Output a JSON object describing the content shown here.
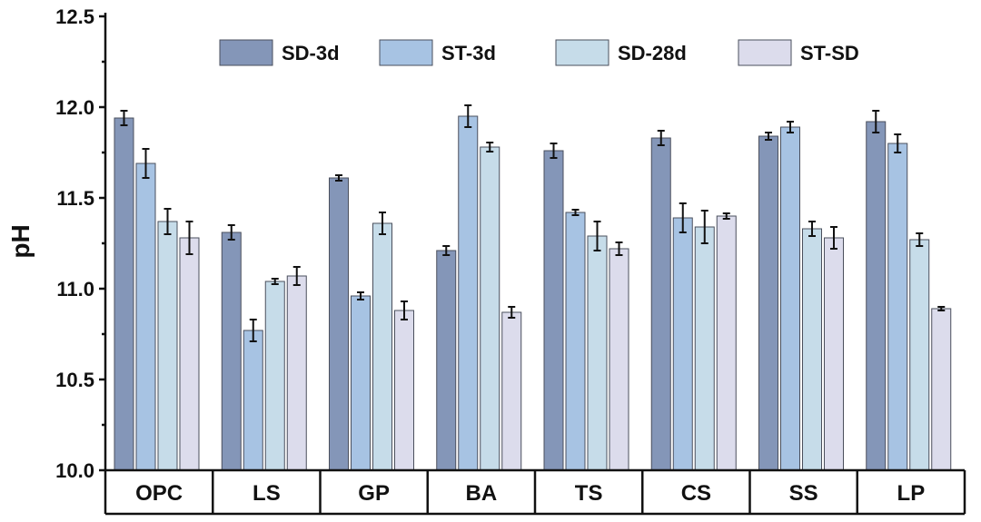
{
  "chart_data": {
    "type": "bar",
    "title": "",
    "xlabel": "",
    "ylabel": "pH",
    "ylim": [
      10.0,
      12.5
    ],
    "yticks": [
      "10.0",
      "10.5",
      "11.0",
      "11.5",
      "12.0",
      "12.5"
    ],
    "categories": [
      "OPC",
      "LS",
      "GP",
      "BA",
      "TS",
      "CS",
      "SS",
      "LP"
    ],
    "legend_position": "top",
    "series": [
      {
        "name": "SD-3d",
        "color": "#8496b8",
        "values": [
          11.94,
          11.31,
          11.61,
          11.21,
          11.76,
          11.83,
          11.84,
          11.92
        ],
        "errors": [
          0.04,
          0.04,
          0.015,
          0.025,
          0.04,
          0.04,
          0.02,
          0.06
        ]
      },
      {
        "name": "ST-3d",
        "color": "#a7c3e3",
        "values": [
          11.69,
          10.77,
          10.96,
          11.95,
          11.42,
          11.39,
          11.89,
          11.8
        ],
        "errors": [
          0.08,
          0.06,
          0.02,
          0.06,
          0.015,
          0.08,
          0.03,
          0.05
        ]
      },
      {
        "name": "SD-28d",
        "color": "#c6dce9",
        "values": [
          11.37,
          11.04,
          11.36,
          11.78,
          11.29,
          11.34,
          11.33,
          11.27
        ],
        "errors": [
          0.07,
          0.015,
          0.06,
          0.025,
          0.08,
          0.09,
          0.04,
          0.035
        ]
      },
      {
        "name": "ST-SD",
        "color": "#dcdcec",
        "values": [
          11.28,
          11.07,
          10.88,
          10.87,
          11.22,
          11.4,
          11.28,
          10.89
        ],
        "errors": [
          0.09,
          0.05,
          0.05,
          0.03,
          0.035,
          0.015,
          0.06,
          0.01
        ]
      }
    ]
  }
}
